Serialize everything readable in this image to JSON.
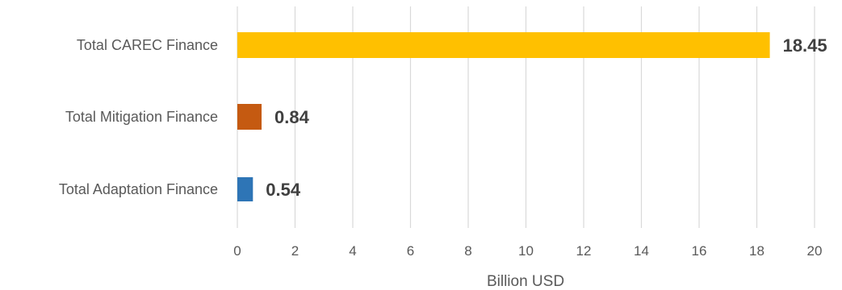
{
  "chart_data": {
    "type": "bar",
    "orientation": "horizontal",
    "title": "",
    "xlabel": "Billion USD",
    "ylabel": "",
    "xlim": [
      0,
      20
    ],
    "xticks": [
      0,
      2,
      4,
      6,
      8,
      10,
      12,
      14,
      16,
      18,
      20
    ],
    "grid": true,
    "legend": "none",
    "bars": [
      {
        "category": "Total CAREC Finance",
        "value": 18.45,
        "label": "18.45",
        "color": "#FFC000"
      },
      {
        "category": "Total Mitigation Finance",
        "value": 0.84,
        "label": "0.84",
        "color": "#C55A11"
      },
      {
        "category": "Total Adaptation Finance",
        "value": 0.54,
        "label": "0.54",
        "color": "#2E75B6"
      }
    ]
  }
}
